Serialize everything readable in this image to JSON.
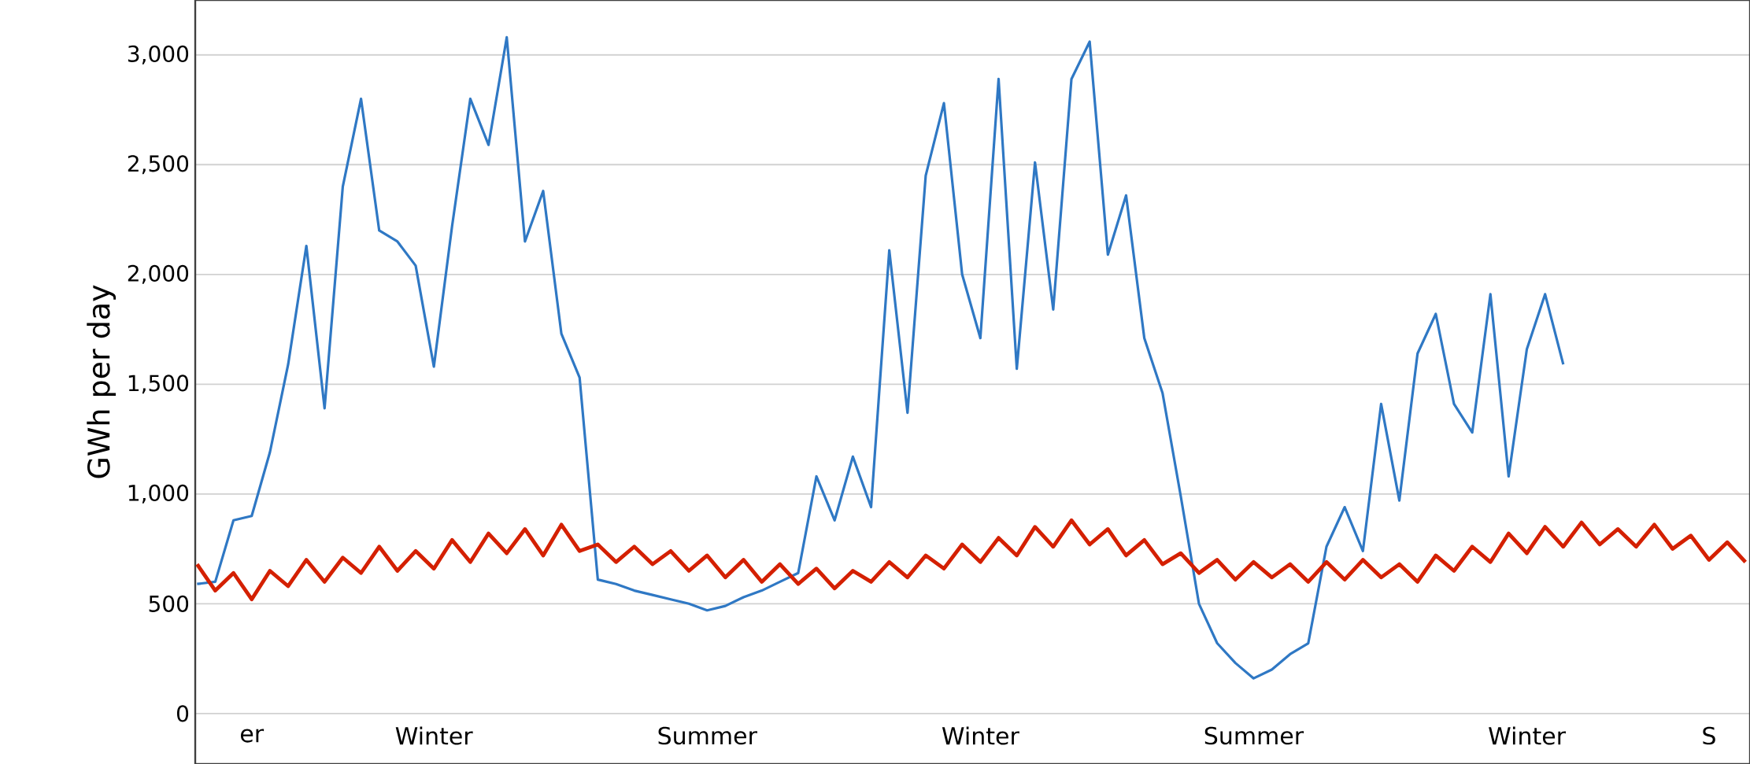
{
  "chart_data": {
    "type": "line",
    "ylabel": "GWh per day",
    "categories": [
      null,
      null,
      null,
      "er",
      null,
      null,
      null,
      null,
      null,
      null,
      null,
      null,
      null,
      "Winter",
      null,
      null,
      null,
      null,
      null,
      null,
      null,
      null,
      null,
      null,
      null,
      null,
      null,
      null,
      "Summer",
      null,
      null,
      null,
      null,
      null,
      null,
      null,
      null,
      null,
      null,
      null,
      null,
      null,
      null,
      "Winter",
      null,
      null,
      null,
      null,
      null,
      null,
      null,
      null,
      null,
      null,
      null,
      null,
      null,
      null,
      "Summer",
      null,
      null,
      null,
      null,
      null,
      null,
      null,
      null,
      null,
      null,
      null,
      null,
      null,
      null,
      "Winter",
      null,
      null,
      null,
      null,
      null,
      null,
      null,
      null,
      null,
      "S",
      null,
      null
    ],
    "ylim": [
      -230,
      3250
    ],
    "yticks": [
      {
        "value": 0,
        "label": "0"
      },
      {
        "value": 500,
        "label": "500"
      },
      {
        "value": 1000,
        "label": "1,000"
      },
      {
        "value": 1500,
        "label": "1,500"
      },
      {
        "value": 2000,
        "label": "2,000"
      },
      {
        "value": 2500,
        "label": "2,500"
      },
      {
        "value": 3000,
        "label": "3,000"
      }
    ],
    "grid": "y",
    "series": [
      {
        "color": "#2f78c4",
        "values": [
          590,
          600,
          880,
          900,
          1190,
          1590,
          2130,
          1390,
          2400,
          2800,
          2200,
          2150,
          2040,
          1580,
          2220,
          2800,
          2590,
          3080,
          2150,
          2380,
          1730,
          1530,
          610,
          590,
          560,
          540,
          520,
          500,
          470,
          490,
          530,
          560,
          600,
          640,
          1080,
          880,
          1170,
          940,
          2110,
          1370,
          2450,
          2780,
          2000,
          1710,
          2890,
          1570,
          2510,
          1840,
          2890,
          3060,
          2090,
          2360,
          1710,
          1460,
          990,
          500,
          320,
          230,
          160,
          200,
          270,
          320,
          760,
          940,
          740,
          1410,
          970,
          1640,
          1820,
          1410,
          1280,
          1910,
          1080,
          1660,
          1910,
          1590,
          null,
          null,
          null,
          null,
          null,
          null,
          null,
          null,
          null,
          null
        ]
      },
      {
        "color": "#d42000",
        "values": [
          680,
          560,
          640,
          520,
          650,
          580,
          700,
          600,
          710,
          640,
          760,
          650,
          740,
          660,
          790,
          690,
          820,
          730,
          840,
          720,
          860,
          740,
          770,
          690,
          760,
          680,
          740,
          650,
          720,
          620,
          700,
          600,
          680,
          590,
          660,
          570,
          650,
          600,
          690,
          620,
          720,
          660,
          770,
          690,
          800,
          720,
          850,
          760,
          880,
          770,
          840,
          720,
          790,
          680,
          730,
          640,
          700,
          610,
          690,
          620,
          680,
          600,
          690,
          610,
          700,
          620,
          680,
          600,
          720,
          650,
          760,
          690,
          820,
          730,
          850,
          760,
          870,
          770,
          840,
          760,
          860,
          750,
          810,
          700,
          780,
          690
        ]
      }
    ]
  }
}
